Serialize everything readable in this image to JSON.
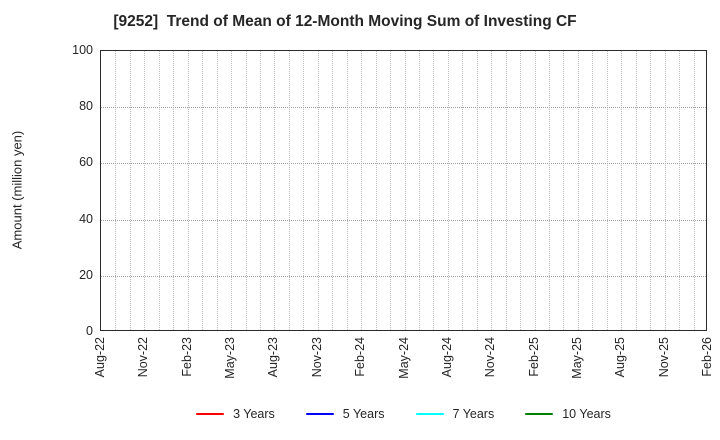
{
  "title": "[9252]  Trend of Mean of 12-Month Moving Sum of Investing CF",
  "y_axis_label": "Amount (million yen)",
  "legend": {
    "items": [
      {
        "label": "3 Years",
        "color": "#ff0000"
      },
      {
        "label": "5 Years",
        "color": "#0000ff"
      },
      {
        "label": "7 Years",
        "color": "#00ffff"
      },
      {
        "label": "10 Years",
        "color": "#008000"
      }
    ]
  },
  "chart_data": {
    "type": "line",
    "title": "[9252]  Trend of Mean of 12-Month Moving Sum of Investing CF",
    "ylabel": "Amount (million yen)",
    "ylim": [
      0,
      100
    ],
    "yticks": [
      0,
      20,
      40,
      60,
      80,
      100
    ],
    "x_tick_labels": [
      "Aug-22",
      "Nov-22",
      "Feb-23",
      "May-23",
      "Aug-23",
      "Nov-23",
      "Feb-24",
      "May-24",
      "Aug-24",
      "Nov-24",
      "Feb-25",
      "May-25",
      "Aug-25",
      "Nov-25",
      "Feb-26"
    ],
    "x_total_months": 42,
    "x_label_interval_months": 3,
    "x_minor_gridline_interval_months": 1,
    "grid": true,
    "legend_position": "bottom",
    "series": [
      {
        "name": "3 Years",
        "color": "#ff0000",
        "values": []
      },
      {
        "name": "5 Years",
        "color": "#0000ff",
        "values": []
      },
      {
        "name": "7 Years",
        "color": "#00ffff",
        "values": []
      },
      {
        "name": "10 Years",
        "color": "#008000",
        "values": []
      }
    ]
  }
}
